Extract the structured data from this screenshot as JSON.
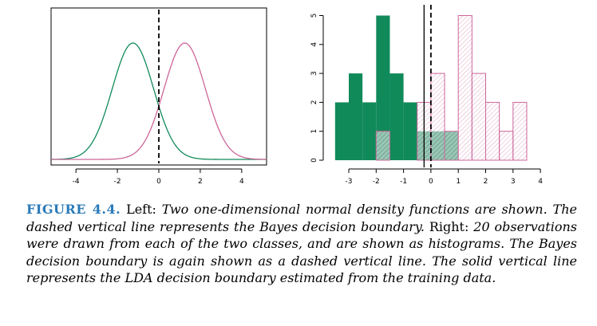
{
  "chart_data": [
    {
      "type": "line",
      "panel": "left",
      "title": "",
      "xlabel": "",
      "ylabel": "",
      "xlim": [
        -5.2,
        5.2
      ],
      "x_ticks": [
        -4,
        -2,
        0,
        2,
        4
      ],
      "x_tick_labels": [
        "-4",
        "-2",
        "0",
        "2",
        "4"
      ],
      "y_ticks_shown": false,
      "series": [
        {
          "name": "class 1 density",
          "color": "#118a5a",
          "mean": -1.25,
          "sd": 1.0
        },
        {
          "name": "class 2 density",
          "color": "#cc6699",
          "mean": 1.25,
          "sd": 1.0
        }
      ],
      "bayes_boundary": {
        "x": 0,
        "style": "dashed"
      }
    },
    {
      "type": "bar",
      "panel": "right",
      "subtype": "histogram",
      "title": "",
      "xlabel": "",
      "ylabel": "",
      "xlim": [
        -3.7,
        4.1
      ],
      "ylim": [
        0,
        5.2
      ],
      "x_ticks": [
        -3,
        -2,
        -1,
        0,
        1,
        2,
        3,
        4
      ],
      "x_tick_labels": [
        "-3",
        "-2",
        "-1",
        "0",
        "1",
        "2",
        "3",
        "4"
      ],
      "y_ticks": [
        0,
        1,
        2,
        3,
        4,
        5
      ],
      "y_tick_labels": [
        "0",
        "1",
        "2",
        "3",
        "4",
        "5"
      ],
      "bin_width": 0.5,
      "series": [
        {
          "name": "class 1 observations",
          "color": "#118a5a",
          "fill": "solid",
          "bin_starts": [
            -3.5,
            -3.0,
            -2.5,
            -2.0,
            -1.5,
            -1.0,
            -0.5,
            0.0,
            0.5
          ],
          "counts": [
            2,
            3,
            2,
            5,
            3,
            2,
            1,
            1,
            1
          ]
        },
        {
          "name": "class 2 observations",
          "color": "#cc6699",
          "fill": "hatched",
          "bin_starts": [
            -2.0,
            -0.5,
            0.0,
            0.5,
            1.0,
            1.5,
            2.0,
            2.5,
            3.0
          ],
          "counts": [
            1,
            2,
            3,
            1,
            5,
            3,
            2,
            1,
            2
          ]
        }
      ],
      "bayes_boundary": {
        "x": 0,
        "style": "dashed"
      },
      "lda_boundary": {
        "x": -0.25,
        "style": "solid"
      }
    }
  ],
  "caption": {
    "label": "FIGURE 4.4.",
    "left_word": "Left:",
    "left_italic": "Two one-dimensional normal density functions are shown. The dashed vertical line represents the Bayes decision boundary.",
    "right_word": "Right:",
    "right_italic": "20 observations were drawn from each of the two classes, and are shown as histograms. The Bayes decision boundary is again shown as a dashed vertical line. The solid vertical line represents the LDA decision boundary estimated from the training data."
  }
}
